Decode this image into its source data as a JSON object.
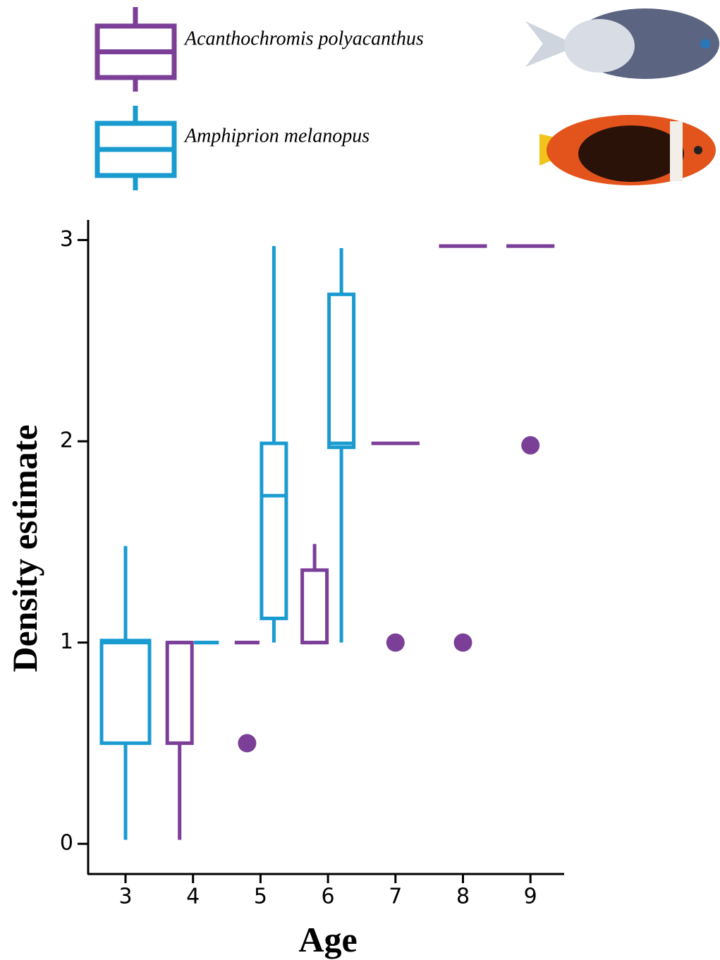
{
  "chart_data": {
    "type": "box",
    "x_label": "Age",
    "y_label": "Density estimate",
    "categories": [
      "3",
      "4",
      "5",
      "6",
      "7",
      "8",
      "9"
    ],
    "ylim": [
      -0.15,
      3.1
    ],
    "yticks": [
      0,
      1,
      2,
      3
    ],
    "series": [
      {
        "name": "Acanthochromis polyacanthus",
        "color": "#7b3f98",
        "min": [
          null,
          0.02,
          1,
          1,
          1.99,
          2.97,
          2.97
        ],
        "q1": [
          null,
          0.5,
          1,
          1,
          1.99,
          2.97,
          2.97
        ],
        "median": [
          null,
          1,
          1,
          1,
          1.99,
          2.97,
          2.97
        ],
        "q3": [
          null,
          1,
          1,
          1.36,
          1.99,
          2.97,
          2.97
        ],
        "max": [
          null,
          1,
          1,
          1.49,
          1.99,
          2.97,
          2.97
        ],
        "outliers": [
          null,
          null,
          0.5,
          null,
          1,
          1,
          1.98
        ]
      },
      {
        "name": "Amphiprion melanopus",
        "color": "#1a9bd0",
        "min": [
          0.02,
          1,
          1,
          1,
          null,
          null,
          null
        ],
        "q1": [
          0.5,
          1,
          1.12,
          1.97,
          null,
          null,
          null
        ],
        "median": [
          1,
          1,
          1.73,
          1.99,
          null,
          null,
          null
        ],
        "q3": [
          1.01,
          1,
          1.99,
          2.73,
          null,
          null,
          null
        ],
        "max": [
          1.48,
          1,
          2.97,
          2.96,
          null,
          null,
          null
        ],
        "outliers": [
          null,
          null,
          null,
          null,
          null,
          null,
          null
        ]
      }
    ]
  }
}
